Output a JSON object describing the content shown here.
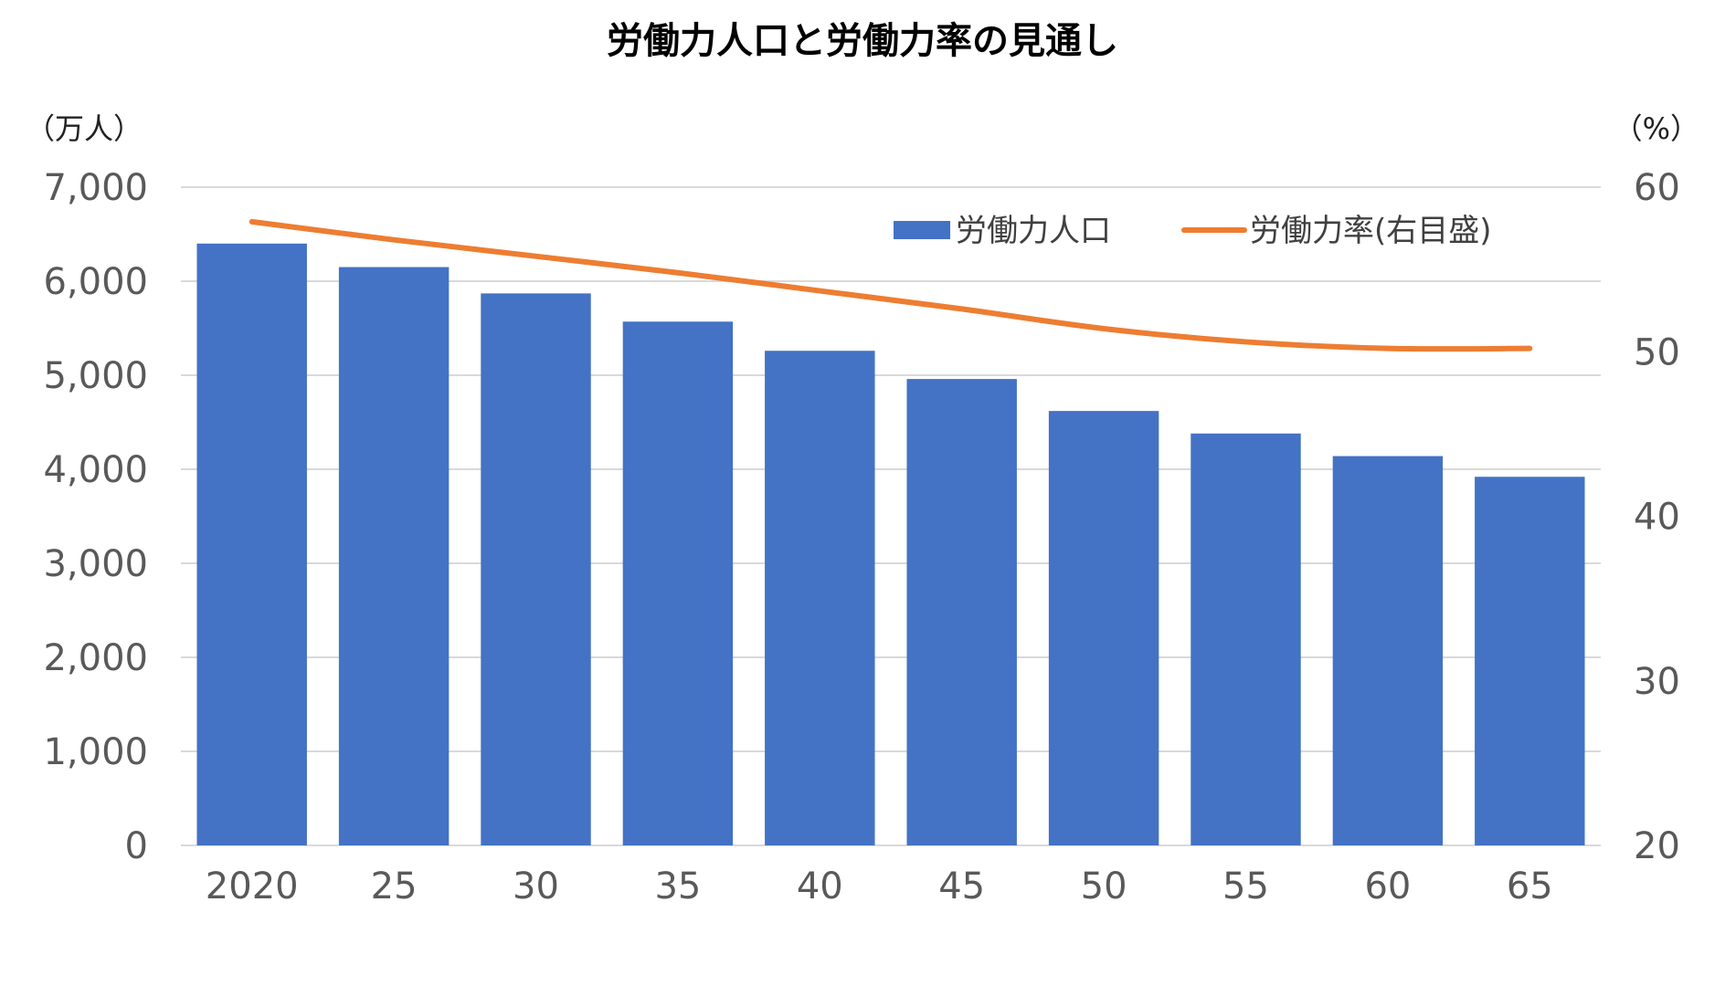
{
  "chart_data": {
    "type": "bar",
    "title": "労働力人口と労働力率の見通し",
    "categories": [
      "2020",
      "25",
      "30",
      "35",
      "40",
      "45",
      "50",
      "55",
      "60",
      "65"
    ],
    "series": [
      {
        "name": "労働力人口",
        "type": "bar",
        "axis": "left",
        "color": "#4472C4",
        "values": [
          6400,
          6150,
          5870,
          5570,
          5260,
          4960,
          4620,
          4380,
          4140,
          3920
        ]
      },
      {
        "name": "労働力率(右目盛)",
        "type": "line",
        "axis": "right",
        "color": "#ED7D31",
        "values": [
          57.9,
          56.8,
          55.8,
          54.8,
          53.7,
          52.6,
          51.4,
          50.6,
          50.2,
          50.2
        ]
      }
    ],
    "y_left": {
      "unit": "（万人）",
      "min": 0,
      "max": 7000,
      "ticks": [
        0,
        1000,
        2000,
        3000,
        4000,
        5000,
        6000,
        7000
      ],
      "tick_labels": [
        "0",
        "1,000",
        "2,000",
        "3,000",
        "4,000",
        "5,000",
        "6,000",
        "7,000"
      ]
    },
    "y_right": {
      "unit": "（%）",
      "min": 20,
      "max": 60,
      "ticks": [
        20,
        30,
        40,
        50,
        60
      ],
      "tick_labels": [
        "20",
        "30",
        "40",
        "50",
        "60"
      ]
    },
    "grid": true,
    "legend_position": "top-right",
    "gridline_color": "#D9D9D9"
  }
}
